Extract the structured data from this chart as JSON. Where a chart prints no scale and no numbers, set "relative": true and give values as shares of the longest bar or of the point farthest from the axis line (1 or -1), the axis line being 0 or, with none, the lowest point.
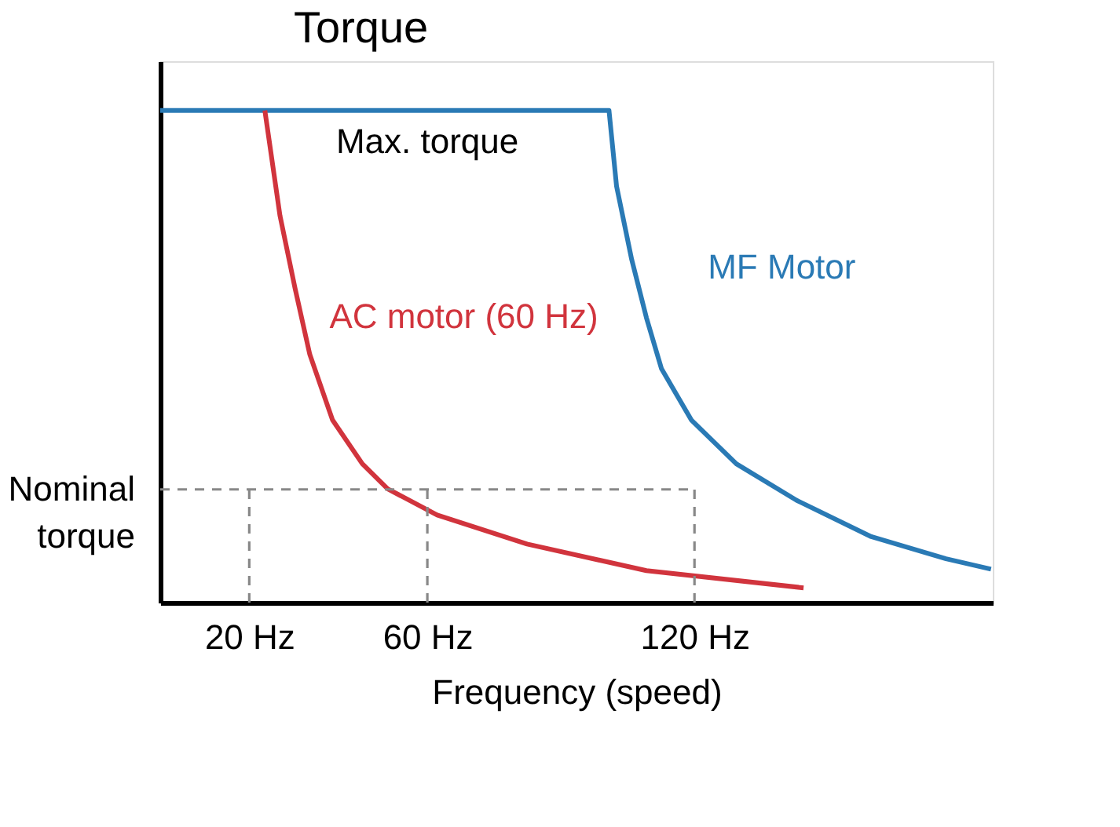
{
  "chart_data": {
    "type": "line",
    "ylabel": "Torque",
    "xlabel": "Frequency (speed)",
    "relative": true,
    "xlim": [
      0,
      187
    ],
    "xticks": [
      {
        "value": 20,
        "label": "20 Hz"
      },
      {
        "value": 60,
        "label": "60 Hz"
      },
      {
        "value": 120,
        "label": "120 Hz"
      }
    ],
    "series": [
      {
        "name": "MF Motor",
        "color": "#2a7ab5",
        "x": [
          0,
          100.8,
          102.5,
          105.9,
          109.2,
          112.6,
          119.3,
          129.4,
          142.9,
          159.7,
          176.5,
          186.6
        ],
        "values": [
          1,
          1,
          0.846,
          0.697,
          0.579,
          0.475,
          0.371,
          0.282,
          0.208,
          0.134,
          0.089,
          0.068
        ]
      },
      {
        "name": "AC motor (60 Hz)",
        "color": "#d1343d",
        "x": [
          23.5,
          26.9,
          30.3,
          33.6,
          38.7,
          45.4,
          51.1,
          62.2,
          82.4,
          109.2,
          144.5
        ],
        "values": [
          1,
          0.786,
          0.638,
          0.504,
          0.371,
          0.282,
          0.231,
          0.178,
          0.119,
          0.065,
          0.03
        ]
      }
    ],
    "ref_lines": [
      {
        "axis": "y",
        "value": 0.23,
        "label": "Nominal torque",
        "color": "#888888",
        "line_style": "dashed"
      },
      {
        "axis": "x",
        "value": 20,
        "color": "#888888",
        "line_style": "dashed"
      },
      {
        "axis": "x",
        "value": 60,
        "color": "#888888",
        "line_style": "dashed"
      },
      {
        "axis": "x",
        "value": 120,
        "color": "#888888",
        "line_style": "dashed"
      }
    ],
    "annotations": [
      {
        "text": "Max. torque",
        "x": 60,
        "y": 1
      }
    ],
    "legend": false,
    "line_style": "solid",
    "marker": "none"
  }
}
